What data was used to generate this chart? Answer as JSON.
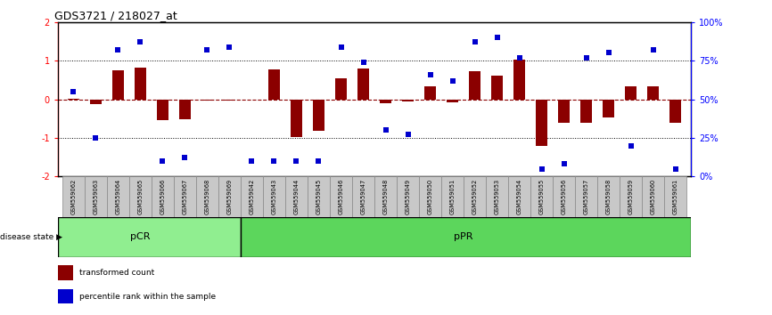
{
  "title": "GDS3721 / 218027_at",
  "samples": [
    "GSM559062",
    "GSM559063",
    "GSM559064",
    "GSM559065",
    "GSM559066",
    "GSM559067",
    "GSM559068",
    "GSM559069",
    "GSM559042",
    "GSM559043",
    "GSM559044",
    "GSM559045",
    "GSM559046",
    "GSM559047",
    "GSM559048",
    "GSM559049",
    "GSM559050",
    "GSM559051",
    "GSM559052",
    "GSM559053",
    "GSM559054",
    "GSM559055",
    "GSM559056",
    "GSM559057",
    "GSM559058",
    "GSM559059",
    "GSM559060",
    "GSM559061"
  ],
  "bar_values": [
    0.02,
    -0.12,
    0.75,
    0.82,
    -0.55,
    -0.52,
    -0.04,
    -0.04,
    0.0,
    0.78,
    -0.98,
    -0.82,
    0.55,
    0.8,
    -0.1,
    -0.05,
    0.33,
    -0.08,
    0.73,
    0.62,
    1.02,
    -1.22,
    -0.62,
    -0.62,
    -0.48,
    0.33,
    0.33,
    -0.62
  ],
  "percentile_values": [
    55,
    25,
    82,
    87,
    10,
    12,
    82,
    84,
    10,
    10,
    10,
    10,
    84,
    74,
    30,
    27,
    66,
    62,
    87,
    90,
    77,
    5,
    8,
    77,
    80,
    20,
    82,
    5
  ],
  "pCR_count": 8,
  "pPR_count": 20,
  "bar_color": "#8B0000",
  "dot_color": "#0000CD",
  "ylim": [
    -2,
    2
  ],
  "y2lim": [
    0,
    100
  ],
  "yticks": [
    -2,
    -1,
    0,
    1,
    2
  ],
  "y2ticks": [
    0,
    25,
    50,
    75,
    100
  ],
  "y2ticklabels": [
    "0%",
    "25%",
    "50%",
    "75%",
    "100%"
  ],
  "legend_bar_label": "transformed count",
  "legend_dot_label": "percentile rank within the sample",
  "disease_state_label": "disease state",
  "pCR_label": "pCR",
  "pPR_label": "pPR",
  "pCR_color": "#90EE90",
  "pPR_color": "#5CD65C",
  "label_area_color": "#C8C8C8",
  "label_area_border": "#888888"
}
